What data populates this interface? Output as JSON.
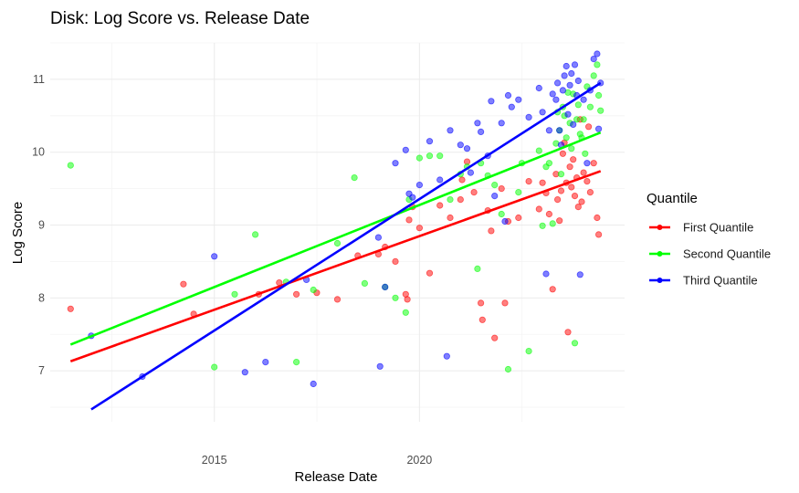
{
  "chart_data": {
    "type": "scatter",
    "title": "Disk: Log Score vs. Release Date",
    "xlabel": "Release Date",
    "ylabel": "Log Score",
    "x_axis_kind": "date",
    "xlim": [
      "2011-01-01",
      "2025-01-01"
    ],
    "ylim": [
      6.3,
      11.5
    ],
    "x_ticks": [
      "2015",
      "2020"
    ],
    "y_ticks": [
      "7",
      "8",
      "9",
      "10",
      "11"
    ],
    "grid": true,
    "legend": {
      "title": "Quantile",
      "placement": "right"
    },
    "series": [
      {
        "name": "First Quantile",
        "color": "#ff0000",
        "trend": {
          "x": [
            "2011-07-01",
            "2024-06-01"
          ],
          "y": [
            7.13,
            9.74
          ]
        },
        "points": [
          [
            "2011-07-01",
            7.85
          ],
          [
            "2014-04-01",
            8.19
          ],
          [
            "2014-07-01",
            7.78
          ],
          [
            "2016-02-01",
            8.05
          ],
          [
            "2016-08-01",
            8.21
          ],
          [
            "2017-01-01",
            8.05
          ],
          [
            "2017-07-01",
            8.07
          ],
          [
            "2018-01-01",
            7.98
          ],
          [
            "2018-07-01",
            8.58
          ],
          [
            "2019-01-01",
            8.6
          ],
          [
            "2019-03-01",
            8.7
          ],
          [
            "2019-06-01",
            8.5
          ],
          [
            "2019-09-01",
            8.05
          ],
          [
            "2019-09-15",
            7.98
          ],
          [
            "2019-10-01",
            9.07
          ],
          [
            "2019-11-01",
            9.25
          ],
          [
            "2020-01-01",
            8.96
          ],
          [
            "2020-04-01",
            8.34
          ],
          [
            "2020-07-01",
            9.27
          ],
          [
            "2020-10-01",
            9.1
          ],
          [
            "2021-01-01",
            9.35
          ],
          [
            "2021-01-15",
            9.62
          ],
          [
            "2021-03-01",
            9.87
          ],
          [
            "2021-05-01",
            9.45
          ],
          [
            "2021-07-01",
            7.93
          ],
          [
            "2021-07-15",
            7.7
          ],
          [
            "2021-09-01",
            9.2
          ],
          [
            "2021-10-01",
            8.92
          ],
          [
            "2021-11-01",
            7.45
          ],
          [
            "2022-01-01",
            9.5
          ],
          [
            "2022-02-01",
            7.93
          ],
          [
            "2022-03-01",
            9.05
          ],
          [
            "2022-06-01",
            9.1
          ],
          [
            "2022-09-01",
            9.6
          ],
          [
            "2022-12-01",
            9.22
          ],
          [
            "2023-01-01",
            9.58
          ],
          [
            "2023-02-01",
            9.44
          ],
          [
            "2023-03-01",
            9.15
          ],
          [
            "2023-04-01",
            8.12
          ],
          [
            "2023-05-01",
            9.7
          ],
          [
            "2023-05-15",
            9.35
          ],
          [
            "2023-06-01",
            9.06
          ],
          [
            "2023-06-15",
            9.47
          ],
          [
            "2023-07-01",
            9.98
          ],
          [
            "2023-07-15",
            10.13
          ],
          [
            "2023-08-01",
            9.58
          ],
          [
            "2023-08-15",
            7.53
          ],
          [
            "2023-09-01",
            9.8
          ],
          [
            "2023-09-15",
            9.52
          ],
          [
            "2023-10-01",
            9.9
          ],
          [
            "2023-10-15",
            9.4
          ],
          [
            "2023-11-01",
            9.65
          ],
          [
            "2023-11-15",
            9.25
          ],
          [
            "2023-12-01",
            10.45
          ],
          [
            "2024-01-01",
            9.72
          ],
          [
            "2024-02-01",
            9.6
          ],
          [
            "2024-03-01",
            9.45
          ],
          [
            "2024-04-01",
            9.85
          ],
          [
            "2024-05-01",
            9.1
          ],
          [
            "2024-05-15",
            8.87
          ],
          [
            "2024-02-15",
            10.35
          ],
          [
            "2023-12-15",
            9.32
          ]
        ]
      },
      {
        "name": "Second Quantile",
        "color": "#00ff00",
        "trend": {
          "x": [
            "2011-07-01",
            "2024-06-01"
          ],
          "y": [
            7.36,
            10.27
          ]
        },
        "points": [
          [
            "2011-07-01",
            9.82
          ],
          [
            "2015-01-01",
            7.05
          ],
          [
            "2015-07-01",
            8.05
          ],
          [
            "2016-01-01",
            8.87
          ],
          [
            "2016-10-01",
            8.22
          ],
          [
            "2017-01-01",
            7.12
          ],
          [
            "2017-06-01",
            8.11
          ],
          [
            "2018-01-01",
            8.75
          ],
          [
            "2018-06-01",
            9.65
          ],
          [
            "2018-09-01",
            8.2
          ],
          [
            "2019-03-01",
            8.15
          ],
          [
            "2019-06-01",
            8.0
          ],
          [
            "2019-09-01",
            7.8
          ],
          [
            "2019-10-01",
            9.35
          ],
          [
            "2020-01-01",
            9.92
          ],
          [
            "2020-04-01",
            9.95
          ],
          [
            "2020-07-01",
            9.95
          ],
          [
            "2020-10-01",
            9.35
          ],
          [
            "2021-01-01",
            9.7
          ],
          [
            "2021-03-01",
            9.8
          ],
          [
            "2021-06-01",
            8.4
          ],
          [
            "2021-07-01",
            9.85
          ],
          [
            "2021-09-01",
            9.68
          ],
          [
            "2021-11-01",
            9.55
          ],
          [
            "2022-01-01",
            9.15
          ],
          [
            "2022-03-01",
            7.02
          ],
          [
            "2022-06-01",
            9.45
          ],
          [
            "2022-09-01",
            7.27
          ],
          [
            "2022-12-01",
            10.02
          ],
          [
            "2023-01-01",
            8.99
          ],
          [
            "2023-02-01",
            9.8
          ],
          [
            "2023-03-01",
            9.85
          ],
          [
            "2023-04-01",
            9.02
          ],
          [
            "2023-05-01",
            10.12
          ],
          [
            "2023-05-15",
            10.55
          ],
          [
            "2023-06-01",
            10.3
          ],
          [
            "2023-06-15",
            9.7
          ],
          [
            "2023-07-01",
            10.62
          ],
          [
            "2023-07-15",
            10.5
          ],
          [
            "2023-08-01",
            10.2
          ],
          [
            "2023-08-15",
            10.82
          ],
          [
            "2023-09-01",
            10.4
          ],
          [
            "2023-09-15",
            10.05
          ],
          [
            "2023-10-01",
            10.8
          ],
          [
            "2023-10-15",
            7.38
          ],
          [
            "2023-11-01",
            10.45
          ],
          [
            "2023-11-15",
            10.65
          ],
          [
            "2023-12-01",
            10.25
          ],
          [
            "2024-01-01",
            10.45
          ],
          [
            "2024-02-01",
            10.9
          ],
          [
            "2024-03-01",
            10.62
          ],
          [
            "2024-04-01",
            11.05
          ],
          [
            "2024-05-01",
            11.2
          ],
          [
            "2024-05-15",
            10.78
          ],
          [
            "2024-06-01",
            10.57
          ],
          [
            "2024-01-15",
            9.98
          ],
          [
            "2023-12-15",
            10.2
          ],
          [
            "2022-07-01",
            9.85
          ]
        ]
      },
      {
        "name": "Third Quantile",
        "color": "#0000ff",
        "trend": {
          "x": [
            "2012-01-01",
            "2024-06-01"
          ],
          "y": [
            6.47,
            10.95
          ]
        },
        "points": [
          [
            "2012-01-01",
            7.48
          ],
          [
            "2013-04-01",
            6.92
          ],
          [
            "2015-01-01",
            8.57
          ],
          [
            "2015-10-01",
            6.98
          ],
          [
            "2016-04-01",
            7.12
          ],
          [
            "2017-04-01",
            8.25
          ],
          [
            "2017-06-01",
            6.82
          ],
          [
            "2019-01-01",
            8.83
          ],
          [
            "2019-01-15",
            7.06
          ],
          [
            "2019-03-01",
            8.15
          ],
          [
            "2019-06-01",
            9.85
          ],
          [
            "2019-09-01",
            10.03
          ],
          [
            "2019-10-01",
            9.43
          ],
          [
            "2019-11-01",
            9.38
          ],
          [
            "2020-01-01",
            9.55
          ],
          [
            "2020-04-01",
            10.15
          ],
          [
            "2020-07-01",
            9.62
          ],
          [
            "2020-10-01",
            10.3
          ],
          [
            "2021-01-01",
            10.1
          ],
          [
            "2021-03-01",
            10.05
          ],
          [
            "2021-06-01",
            10.4
          ],
          [
            "2021-07-01",
            10.28
          ],
          [
            "2021-09-01",
            9.95
          ],
          [
            "2021-10-01",
            10.7
          ],
          [
            "2021-11-01",
            9.4
          ],
          [
            "2022-01-01",
            10.4
          ],
          [
            "2022-02-01",
            9.05
          ],
          [
            "2022-03-01",
            10.78
          ],
          [
            "2022-04-01",
            10.62
          ],
          [
            "2022-06-01",
            10.72
          ],
          [
            "2022-09-01",
            10.48
          ],
          [
            "2022-12-01",
            10.88
          ],
          [
            "2023-01-01",
            10.55
          ],
          [
            "2023-02-01",
            8.33
          ],
          [
            "2023-03-01",
            10.3
          ],
          [
            "2023-04-01",
            10.8
          ],
          [
            "2023-05-01",
            10.72
          ],
          [
            "2023-05-15",
            10.95
          ],
          [
            "2023-06-01",
            10.3
          ],
          [
            "2023-06-15",
            10.1
          ],
          [
            "2023-07-01",
            10.85
          ],
          [
            "2023-07-15",
            11.05
          ],
          [
            "2023-08-01",
            11.18
          ],
          [
            "2023-08-15",
            10.52
          ],
          [
            "2023-09-01",
            10.92
          ],
          [
            "2023-09-15",
            11.08
          ],
          [
            "2023-10-01",
            10.38
          ],
          [
            "2023-10-15",
            11.2
          ],
          [
            "2023-11-01",
            10.78
          ],
          [
            "2023-11-15",
            10.98
          ],
          [
            "2023-12-01",
            8.32
          ],
          [
            "2024-01-01",
            10.72
          ],
          [
            "2024-02-01",
            9.85
          ],
          [
            "2024-03-01",
            10.85
          ],
          [
            "2024-04-01",
            11.28
          ],
          [
            "2024-05-01",
            11.35
          ],
          [
            "2024-05-15",
            10.32
          ],
          [
            "2024-06-01",
            10.95
          ],
          [
            "2020-09-01",
            7.2
          ],
          [
            "2021-04-01",
            9.72
          ]
        ]
      }
    ]
  }
}
